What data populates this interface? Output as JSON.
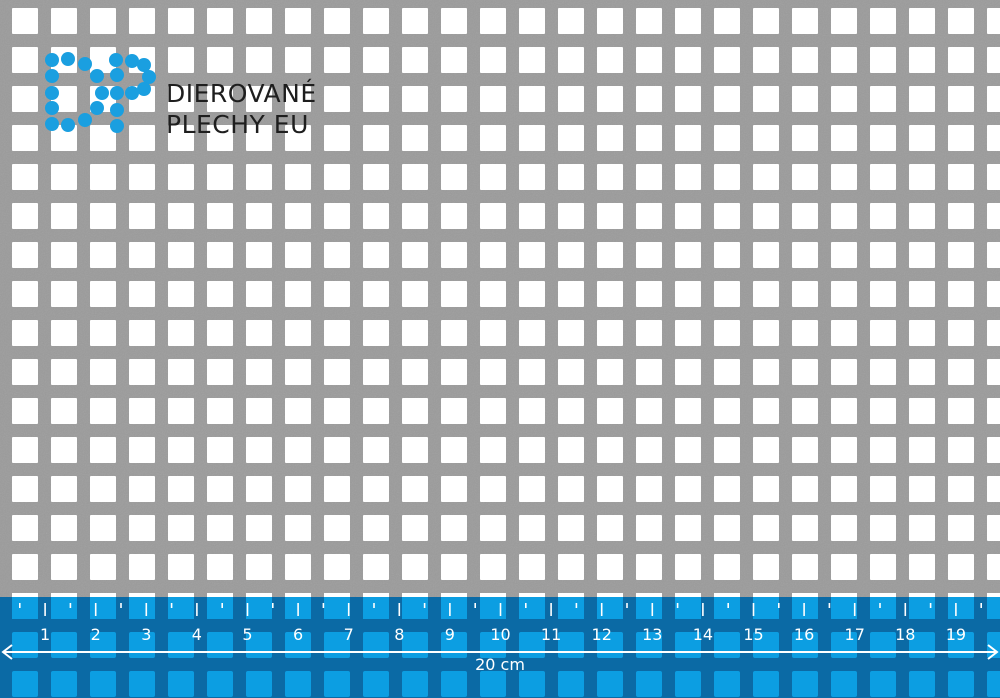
{
  "brand": {
    "line1": "DIEROVANÉ",
    "line2": "PLECHY EU",
    "logo_letters": "DP",
    "logo_color": "#1a9fe0"
  },
  "ruler": {
    "labels": [
      "1",
      "2",
      "3",
      "4",
      "5",
      "6",
      "7",
      "8",
      "9",
      "10",
      "11",
      "12",
      "13",
      "14",
      "15",
      "16",
      "17",
      "18",
      "19"
    ],
    "total_label": "20 cm",
    "band_color": "#0b6aa5",
    "hole_color": "#0c9ee2"
  },
  "colors": {
    "metal": "#9a9a9a",
    "hole": "#ffffff"
  }
}
